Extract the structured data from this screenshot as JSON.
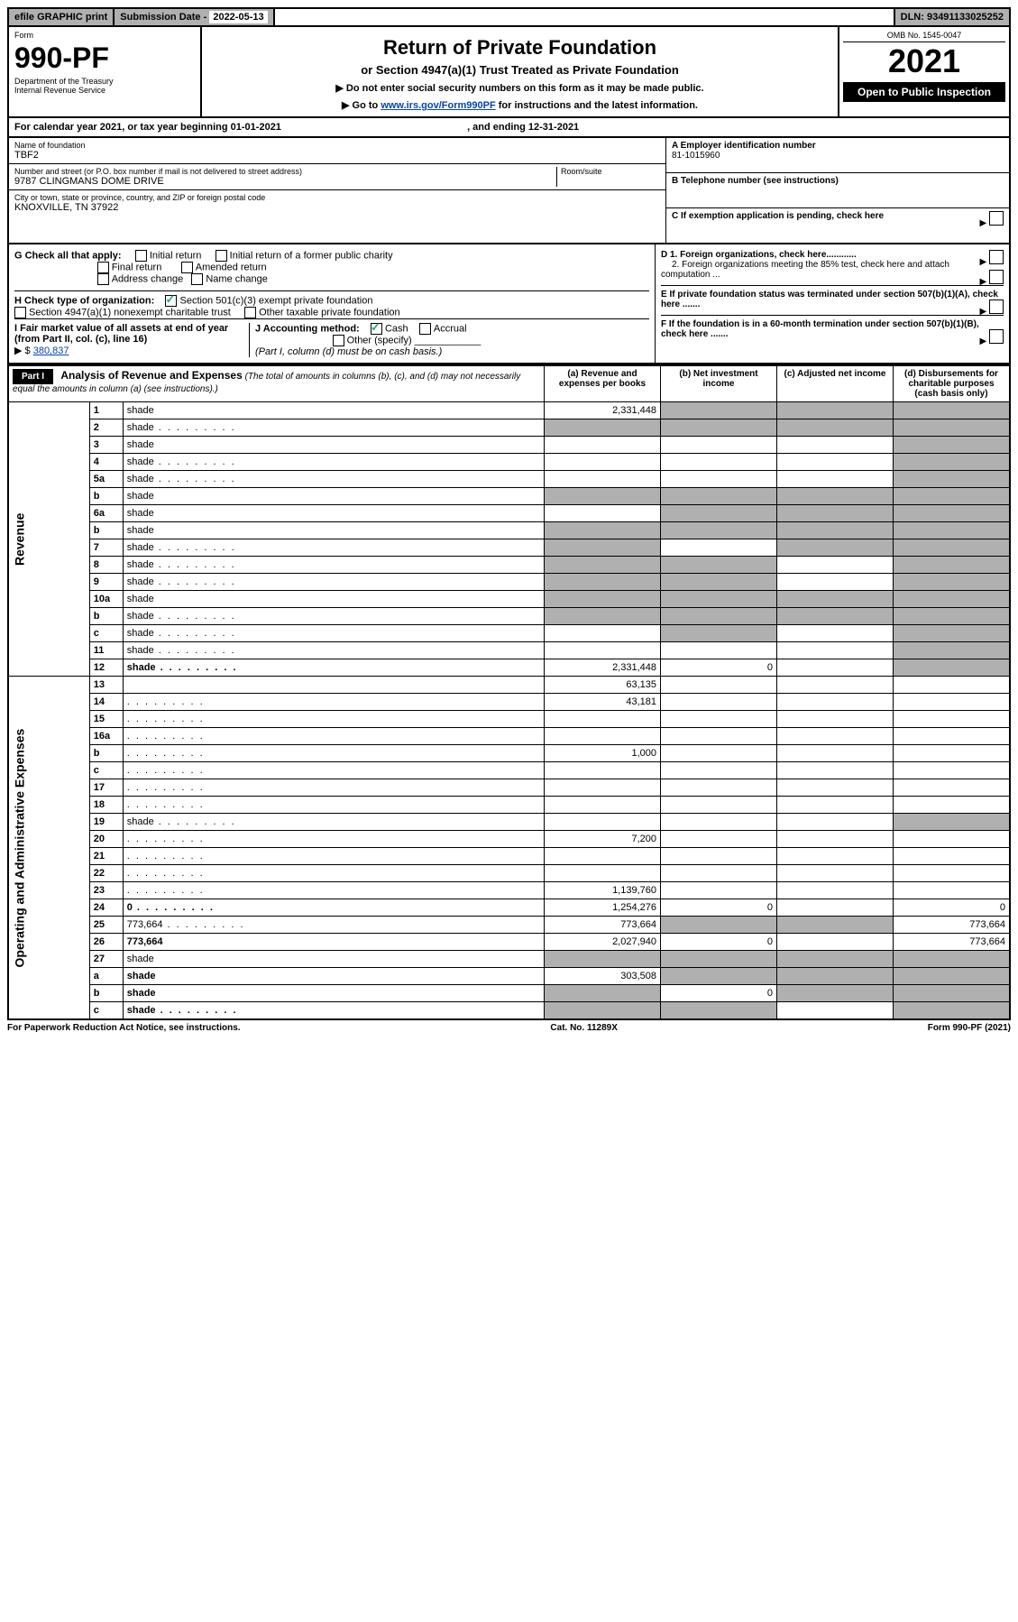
{
  "topbar": {
    "efile": "efile GRAPHIC print",
    "subdate_label": "Submission Date - ",
    "subdate": "2022-05-13",
    "dln_label": "DLN: ",
    "dln": "93491133025252"
  },
  "header": {
    "form_label": "Form",
    "form_no": "990-PF",
    "dept1": "Department of the Treasury",
    "dept2": "Internal Revenue Service",
    "title": "Return of Private Foundation",
    "subtitle": "or Section 4947(a)(1) Trust Treated as Private Foundation",
    "instr1": "▶ Do not enter social security numbers on this form as it may be made public.",
    "instr2_pre": "▶ Go to ",
    "instr2_link": "www.irs.gov/Form990PF",
    "instr2_post": " for instructions and the latest information.",
    "omb_label": "OMB No. ",
    "omb": "1545-0047",
    "year": "2021",
    "open": "Open to Public Inspection"
  },
  "calyear": {
    "text_pre": "For calendar year 2021, or tax year beginning ",
    "begin": "01-01-2021",
    "mid": " , and ending ",
    "end": "12-31-2021"
  },
  "info": {
    "name_label": "Name of foundation",
    "name": "TBF2",
    "addr_label": "Number and street (or P.O. box number if mail is not delivered to street address)",
    "addr": "9787 CLINGMANS DOME DRIVE",
    "room_label": "Room/suite",
    "city_label": "City or town, state or province, country, and ZIP or foreign postal code",
    "city": "KNOXVILLE, TN  37922",
    "ein_label": "A Employer identification number",
    "ein": "81-1015960",
    "tel_label": "B Telephone number (see instructions)",
    "c_label": "C If exemption application is pending, check here",
    "d1": "D 1. Foreign organizations, check here............",
    "d2": "2. Foreign organizations meeting the 85% test, check here and attach computation ...",
    "e_label": "E  If private foundation status was terminated under section 507(b)(1)(A), check here .......",
    "f_label": "F  If the foundation is in a 60-month termination under section 507(b)(1)(B), check here ......."
  },
  "checks": {
    "g_label": "G Check all that apply:",
    "initial": "Initial return",
    "initial_former": "Initial return of a former public charity",
    "final": "Final return",
    "amended": "Amended return",
    "addr_change": "Address change",
    "name_change": "Name change",
    "h_label": "H Check type of organization:",
    "h_501c3": "Section 501(c)(3) exempt private foundation",
    "h_4947": "Section 4947(a)(1) nonexempt charitable trust",
    "h_other": "Other taxable private foundation",
    "i_label": "I Fair market value of all assets at end of year (from Part II, col. (c), line 16)",
    "i_arrow": "▶ $",
    "i_val": "380,837",
    "j_label": "J Accounting method:",
    "j_cash": "Cash",
    "j_accrual": "Accrual",
    "j_other": "Other (specify)",
    "j_note": "(Part I, column (d) must be on cash basis.)"
  },
  "part1": {
    "label": "Part I",
    "title": "Analysis of Revenue and Expenses",
    "title_note": "(The total of amounts in columns (b), (c), and (d) may not necessarily equal the amounts in column (a) (see instructions).)",
    "col_a": "(a)  Revenue and expenses per books",
    "col_b": "(b)  Net investment income",
    "col_c": "(c)  Adjusted net income",
    "col_d": "(d)  Disbursements for charitable purposes (cash basis only)",
    "revenue_label": "Revenue",
    "expenses_label": "Operating and Administrative Expenses"
  },
  "rows": [
    {
      "n": "1",
      "d": "shade",
      "a": "2,331,448",
      "b": "shade",
      "c": "shade"
    },
    {
      "n": "2",
      "d": "shade",
      "dots": true,
      "a": "shade",
      "b": "shade",
      "c": "shade"
    },
    {
      "n": "3",
      "d": "shade",
      "a": "",
      "b": "",
      "c": ""
    },
    {
      "n": "4",
      "d": "shade",
      "dots": true,
      "a": "",
      "b": "",
      "c": ""
    },
    {
      "n": "5a",
      "d": "shade",
      "dots": true,
      "a": "",
      "b": "",
      "c": ""
    },
    {
      "n": "b",
      "d": "shade",
      "a": "shade",
      "b": "shade",
      "c": "shade"
    },
    {
      "n": "6a",
      "d": "shade",
      "a": "",
      "b": "shade",
      "c": "shade"
    },
    {
      "n": "b",
      "d": "shade",
      "a": "shade",
      "b": "shade",
      "c": "shade"
    },
    {
      "n": "7",
      "d": "shade",
      "dots": true,
      "a": "shade",
      "b": "",
      "c": "shade"
    },
    {
      "n": "8",
      "d": "shade",
      "dots": true,
      "a": "shade",
      "b": "shade",
      "c": ""
    },
    {
      "n": "9",
      "d": "shade",
      "dots": true,
      "a": "shade",
      "b": "shade",
      "c": ""
    },
    {
      "n": "10a",
      "d": "shade",
      "a": "shade",
      "b": "shade",
      "c": "shade"
    },
    {
      "n": "b",
      "d": "shade",
      "dots": true,
      "a": "shade",
      "b": "shade",
      "c": "shade"
    },
    {
      "n": "c",
      "d": "shade",
      "dots": true,
      "a": "",
      "b": "shade",
      "c": ""
    },
    {
      "n": "11",
      "d": "shade",
      "dots": true,
      "a": "",
      "b": "",
      "c": ""
    },
    {
      "n": "12",
      "d": "shade",
      "dots": true,
      "bold": true,
      "a": "2,331,448",
      "b": "0",
      "c": ""
    },
    {
      "n": "13",
      "d": "",
      "a": "63,135",
      "b": "",
      "c": ""
    },
    {
      "n": "14",
      "d": "",
      "dots": true,
      "a": "43,181",
      "b": "",
      "c": ""
    },
    {
      "n": "15",
      "d": "",
      "dots": true,
      "a": "",
      "b": "",
      "c": ""
    },
    {
      "n": "16a",
      "d": "",
      "dots": true,
      "a": "",
      "b": "",
      "c": ""
    },
    {
      "n": "b",
      "d": "",
      "dots": true,
      "a": "1,000",
      "b": "",
      "c": ""
    },
    {
      "n": "c",
      "d": "",
      "dots": true,
      "a": "",
      "b": "",
      "c": ""
    },
    {
      "n": "17",
      "d": "",
      "dots": true,
      "a": "",
      "b": "",
      "c": ""
    },
    {
      "n": "18",
      "d": "",
      "dots": true,
      "a": "",
      "b": "",
      "c": ""
    },
    {
      "n": "19",
      "d": "shade",
      "dots": true,
      "a": "",
      "b": "",
      "c": ""
    },
    {
      "n": "20",
      "d": "",
      "dots": true,
      "a": "7,200",
      "b": "",
      "c": ""
    },
    {
      "n": "21",
      "d": "",
      "dots": true,
      "a": "",
      "b": "",
      "c": ""
    },
    {
      "n": "22",
      "d": "",
      "dots": true,
      "a": "",
      "b": "",
      "c": ""
    },
    {
      "n": "23",
      "d": "",
      "dots": true,
      "a": "1,139,760",
      "b": "",
      "c": ""
    },
    {
      "n": "24",
      "d": "0",
      "dots": true,
      "bold": true,
      "a": "1,254,276",
      "b": "0",
      "c": ""
    },
    {
      "n": "25",
      "d": "773,664",
      "dots": true,
      "a": "773,664",
      "b": "shade",
      "c": "shade"
    },
    {
      "n": "26",
      "d": "773,664",
      "bold": true,
      "a": "2,027,940",
      "b": "0",
      "c": ""
    },
    {
      "n": "27",
      "d": "shade",
      "a": "shade",
      "b": "shade",
      "c": "shade"
    },
    {
      "n": "a",
      "d": "shade",
      "bold": true,
      "a": "303,508",
      "b": "shade",
      "c": "shade"
    },
    {
      "n": "b",
      "d": "shade",
      "bold": true,
      "a": "shade",
      "b": "0",
      "c": "shade"
    },
    {
      "n": "c",
      "d": "shade",
      "dots": true,
      "bold": true,
      "a": "shade",
      "b": "shade",
      "c": ""
    }
  ],
  "footer": {
    "left": "For Paperwork Reduction Act Notice, see instructions.",
    "mid": "Cat. No. 11289X",
    "right": "Form 990-PF (2021)"
  }
}
